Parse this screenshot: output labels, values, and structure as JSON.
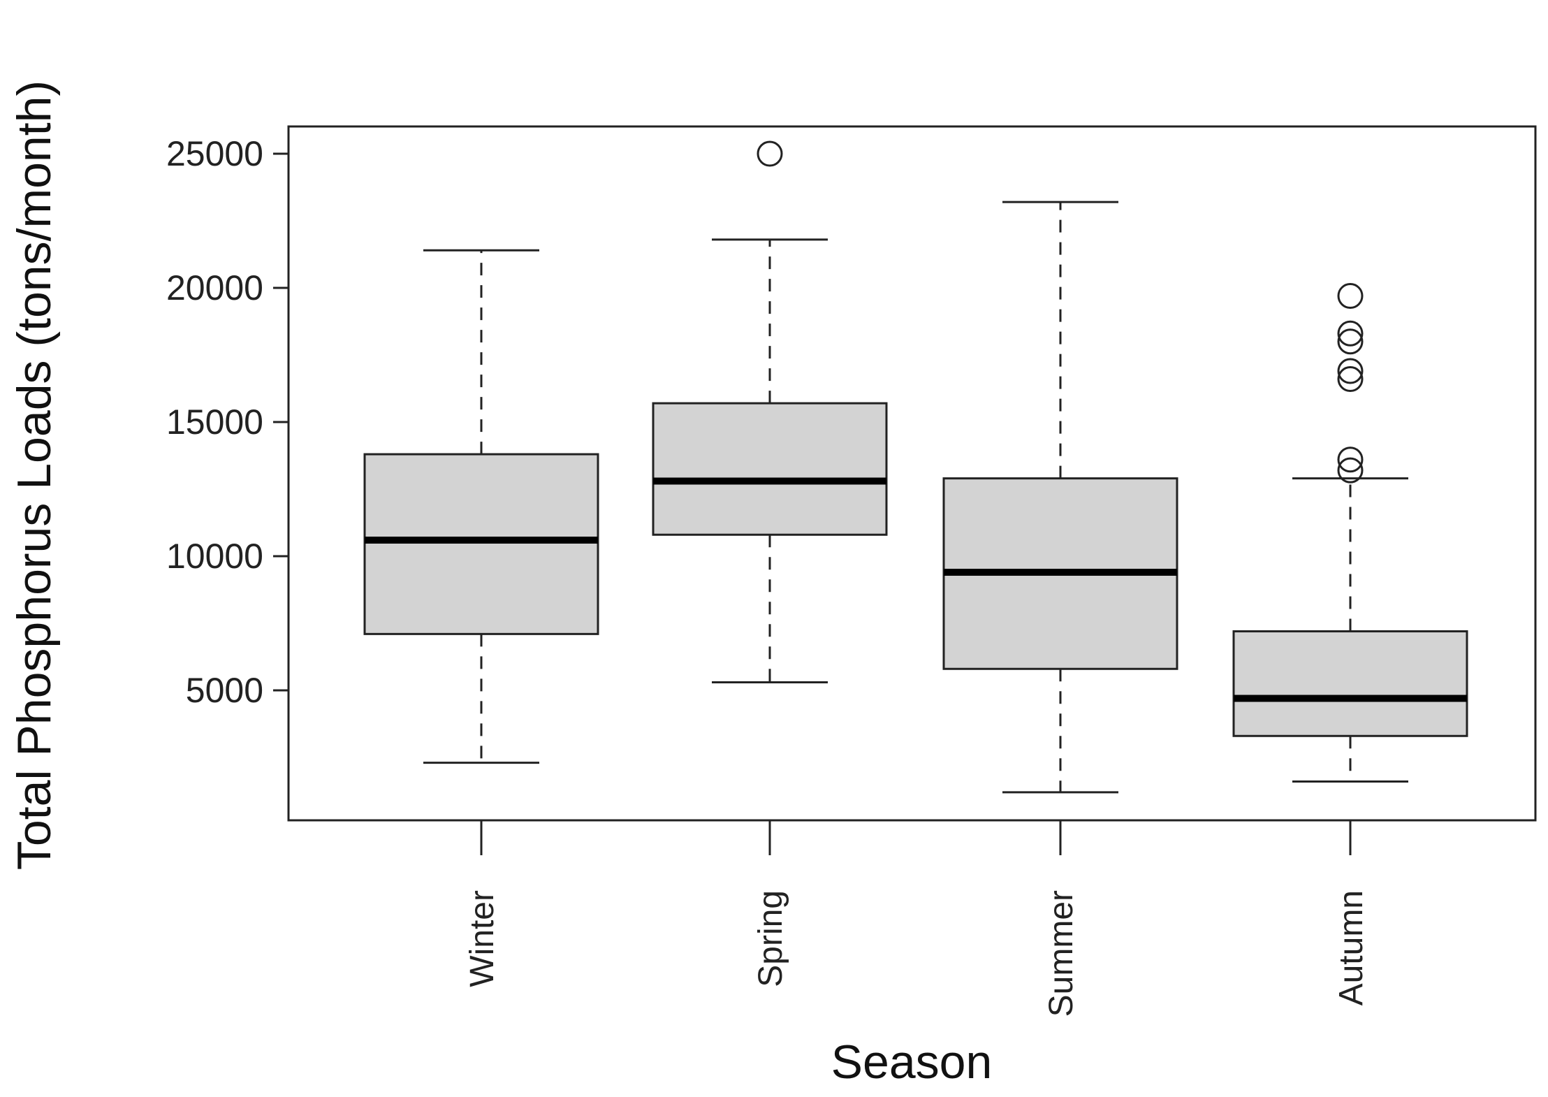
{
  "chart_data": {
    "type": "box",
    "xlabel": "Season",
    "ylabel": "Total Phosphorus Loads (tons/month)",
    "ylim": [
      0,
      26200
    ],
    "yticks": [
      5000,
      10000,
      15000,
      20000,
      25000
    ],
    "ytick_labels": [
      "5000",
      "10000",
      "15000",
      "20000",
      "25000"
    ],
    "categories": [
      "Winter",
      "Spring",
      "Summer",
      "Autumn"
    ],
    "boxes": [
      {
        "category": "Winter",
        "whisker_low": 2300,
        "q1": 7100,
        "median": 10600,
        "q3": 13800,
        "whisker_high": 21400,
        "outliers": []
      },
      {
        "category": "Spring",
        "whisker_low": 5300,
        "q1": 10800,
        "median": 12800,
        "q3": 15700,
        "whisker_high": 21800,
        "outliers": [
          25000
        ]
      },
      {
        "category": "Summer",
        "whisker_low": 1200,
        "q1": 5800,
        "median": 9400,
        "q3": 12900,
        "whisker_high": 23200,
        "outliers": []
      },
      {
        "category": "Autumn",
        "whisker_low": 1600,
        "q1": 3300,
        "median": 4700,
        "q3": 7200,
        "whisker_high": 12900,
        "outliers": [
          13200,
          13600,
          16600,
          16900,
          18000,
          18300,
          19700
        ]
      }
    ],
    "colors": {
      "box_fill": "#d3d3d3",
      "stroke": "#222222"
    }
  }
}
